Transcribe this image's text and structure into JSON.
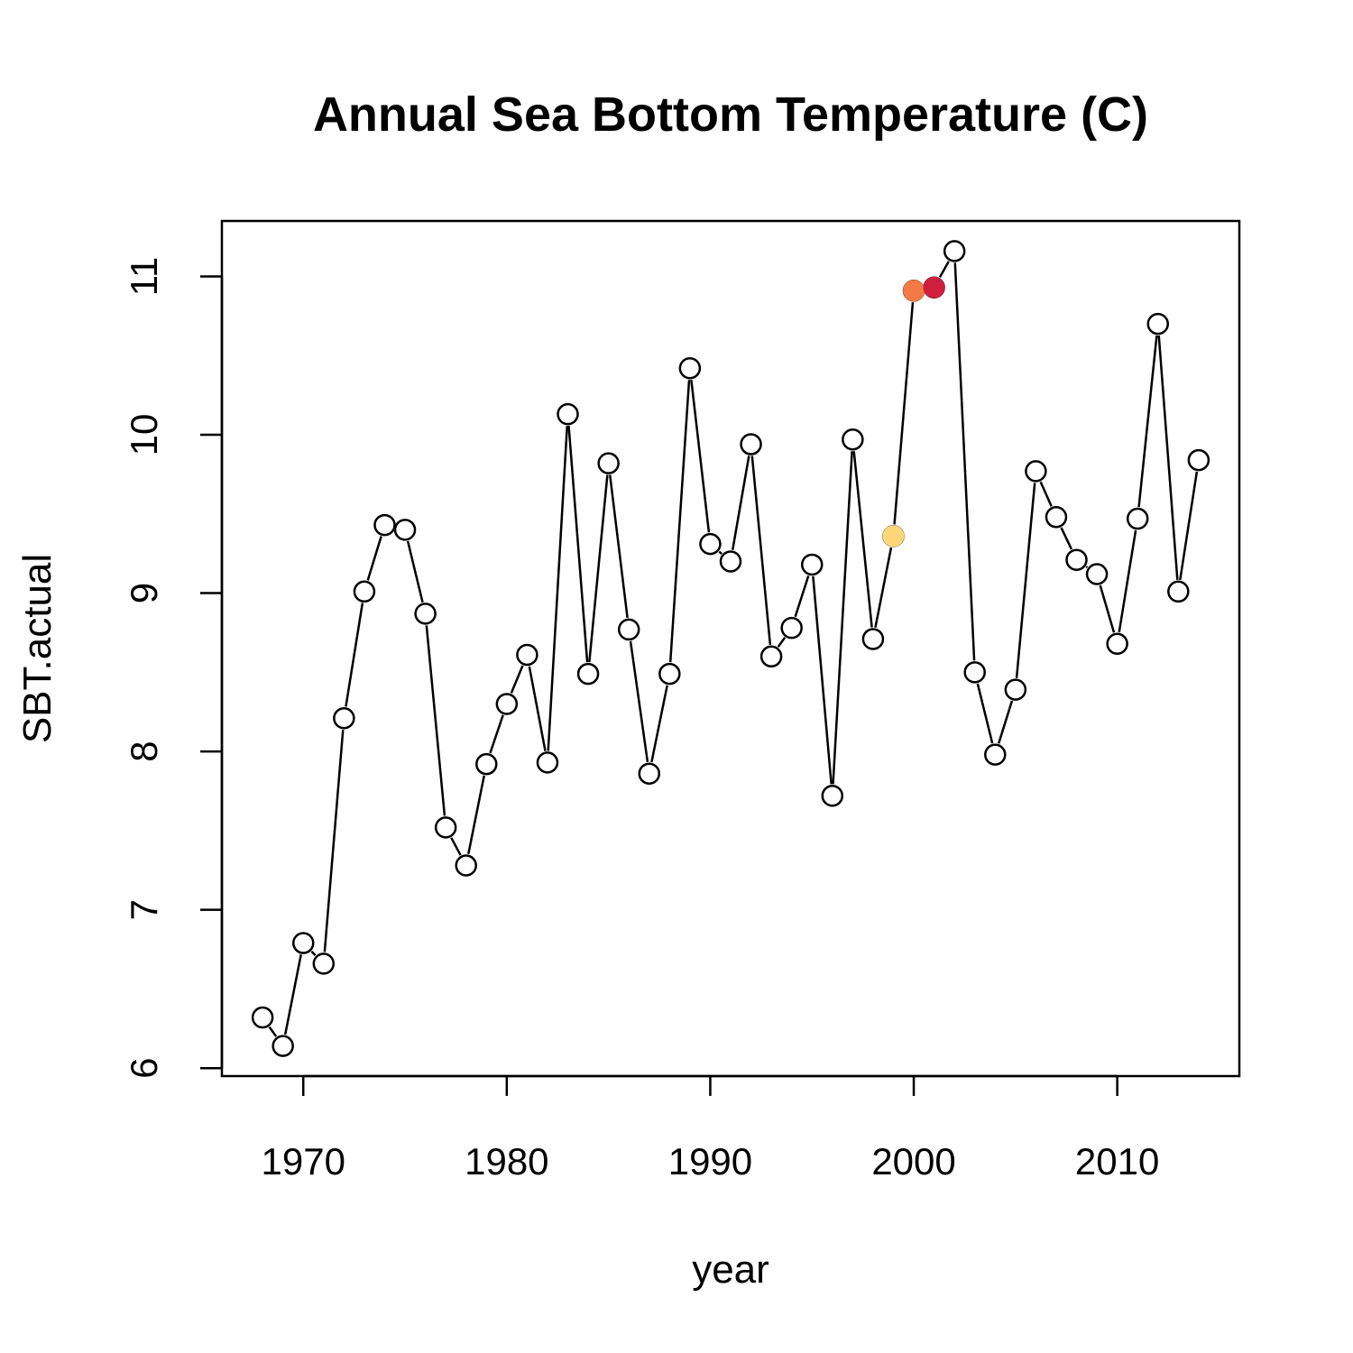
{
  "chart_data": {
    "type": "line",
    "title": "Annual Sea Bottom Temperature (C)",
    "xlabel": "year",
    "ylabel": "SBT.actual",
    "xlim": [
      1966,
      2016
    ],
    "ylim": [
      5.95,
      11.35
    ],
    "x_ticks": [
      1970,
      1980,
      1990,
      2000,
      2010
    ],
    "y_ticks": [
      6,
      7,
      8,
      9,
      10,
      11
    ],
    "grid": false,
    "legend": "none",
    "series": [
      {
        "x": [
          1968,
          1969,
          1970,
          1971,
          1972,
          1973,
          1974,
          1975,
          1976,
          1977,
          1978,
          1979,
          1980,
          1981,
          1982,
          1983,
          1984,
          1985,
          1986,
          1987,
          1988,
          1989,
          1990,
          1991,
          1992,
          1993,
          1994,
          1995,
          1996,
          1997,
          1998,
          1999,
          2000,
          2001,
          2002,
          2003,
          2004,
          2005,
          2006,
          2007,
          2008,
          2009,
          2010,
          2011,
          2012,
          2013,
          2014
        ],
        "values": [
          6.32,
          6.14,
          6.79,
          6.66,
          8.21,
          9.01,
          9.43,
          9.4,
          8.87,
          7.52,
          7.28,
          7.92,
          8.3,
          8.61,
          7.93,
          10.13,
          8.49,
          9.82,
          8.77,
          7.86,
          8.49,
          10.42,
          9.31,
          9.2,
          9.94,
          8.6,
          8.78,
          9.18,
          7.72,
          9.97,
          8.71,
          9.36,
          10.91,
          10.93,
          11.16,
          8.5,
          7.98,
          8.39,
          9.77,
          9.48,
          9.21,
          9.12,
          8.68,
          9.47,
          10.7,
          9.01,
          9.84
        ]
      }
    ],
    "highlighted_points": [
      {
        "x": 1999,
        "value": 9.36,
        "color": "#FDD67A"
      },
      {
        "x": 2000,
        "value": 10.91,
        "color": "#F37A45"
      },
      {
        "x": 2001,
        "value": 10.93,
        "color": "#CF1F3F"
      }
    ],
    "colors": {
      "line": "#000000",
      "marker": "#000000"
    }
  }
}
